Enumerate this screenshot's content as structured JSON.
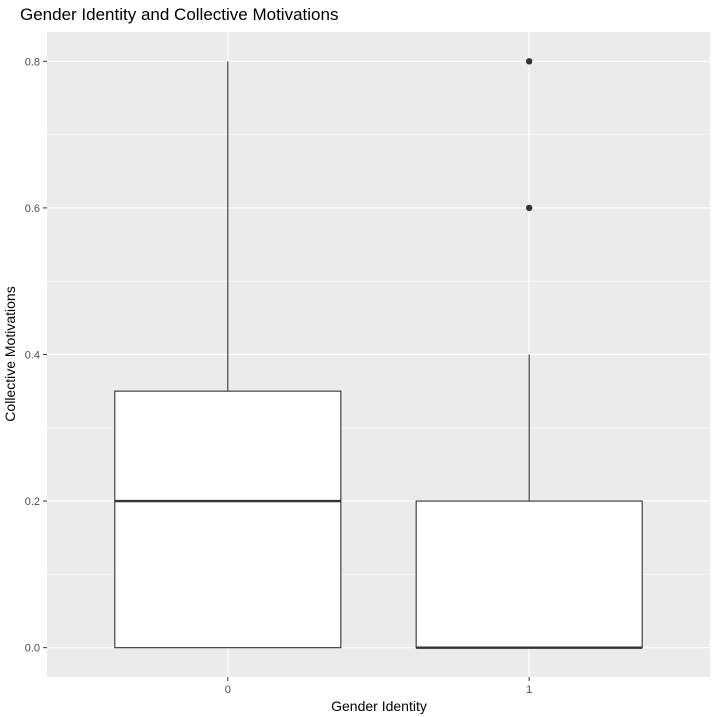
{
  "chart_data": {
    "type": "boxplot",
    "title": "Gender Identity and Collective Motivations",
    "xlabel": "Gender Identity",
    "ylabel": "Collective Motivations",
    "categories": [
      "0",
      "1"
    ],
    "ylim": [
      -0.04,
      0.84
    ],
    "yticks": [
      0.0,
      0.2,
      0.4,
      0.6,
      0.8
    ],
    "ytick_labels": [
      "0.0",
      "0.2",
      "0.4",
      "0.6",
      "0.8"
    ],
    "boxes": [
      {
        "category": "0",
        "whisker_low": 0.0,
        "q1": 0.0,
        "median": 0.2,
        "q3": 0.35,
        "whisker_high": 0.8,
        "outliers": []
      },
      {
        "category": "1",
        "whisker_low": 0.0,
        "q1": 0.0,
        "median": 0.0,
        "q3": 0.2,
        "whisker_high": 0.4,
        "outliers": [
          0.6,
          0.8
        ]
      }
    ],
    "grid": true,
    "panel_background": "#ebebeb",
    "grid_color": "#ffffff",
    "box_fill": "#ffffff",
    "box_stroke": "#333333",
    "outlier_color": "#333333"
  }
}
